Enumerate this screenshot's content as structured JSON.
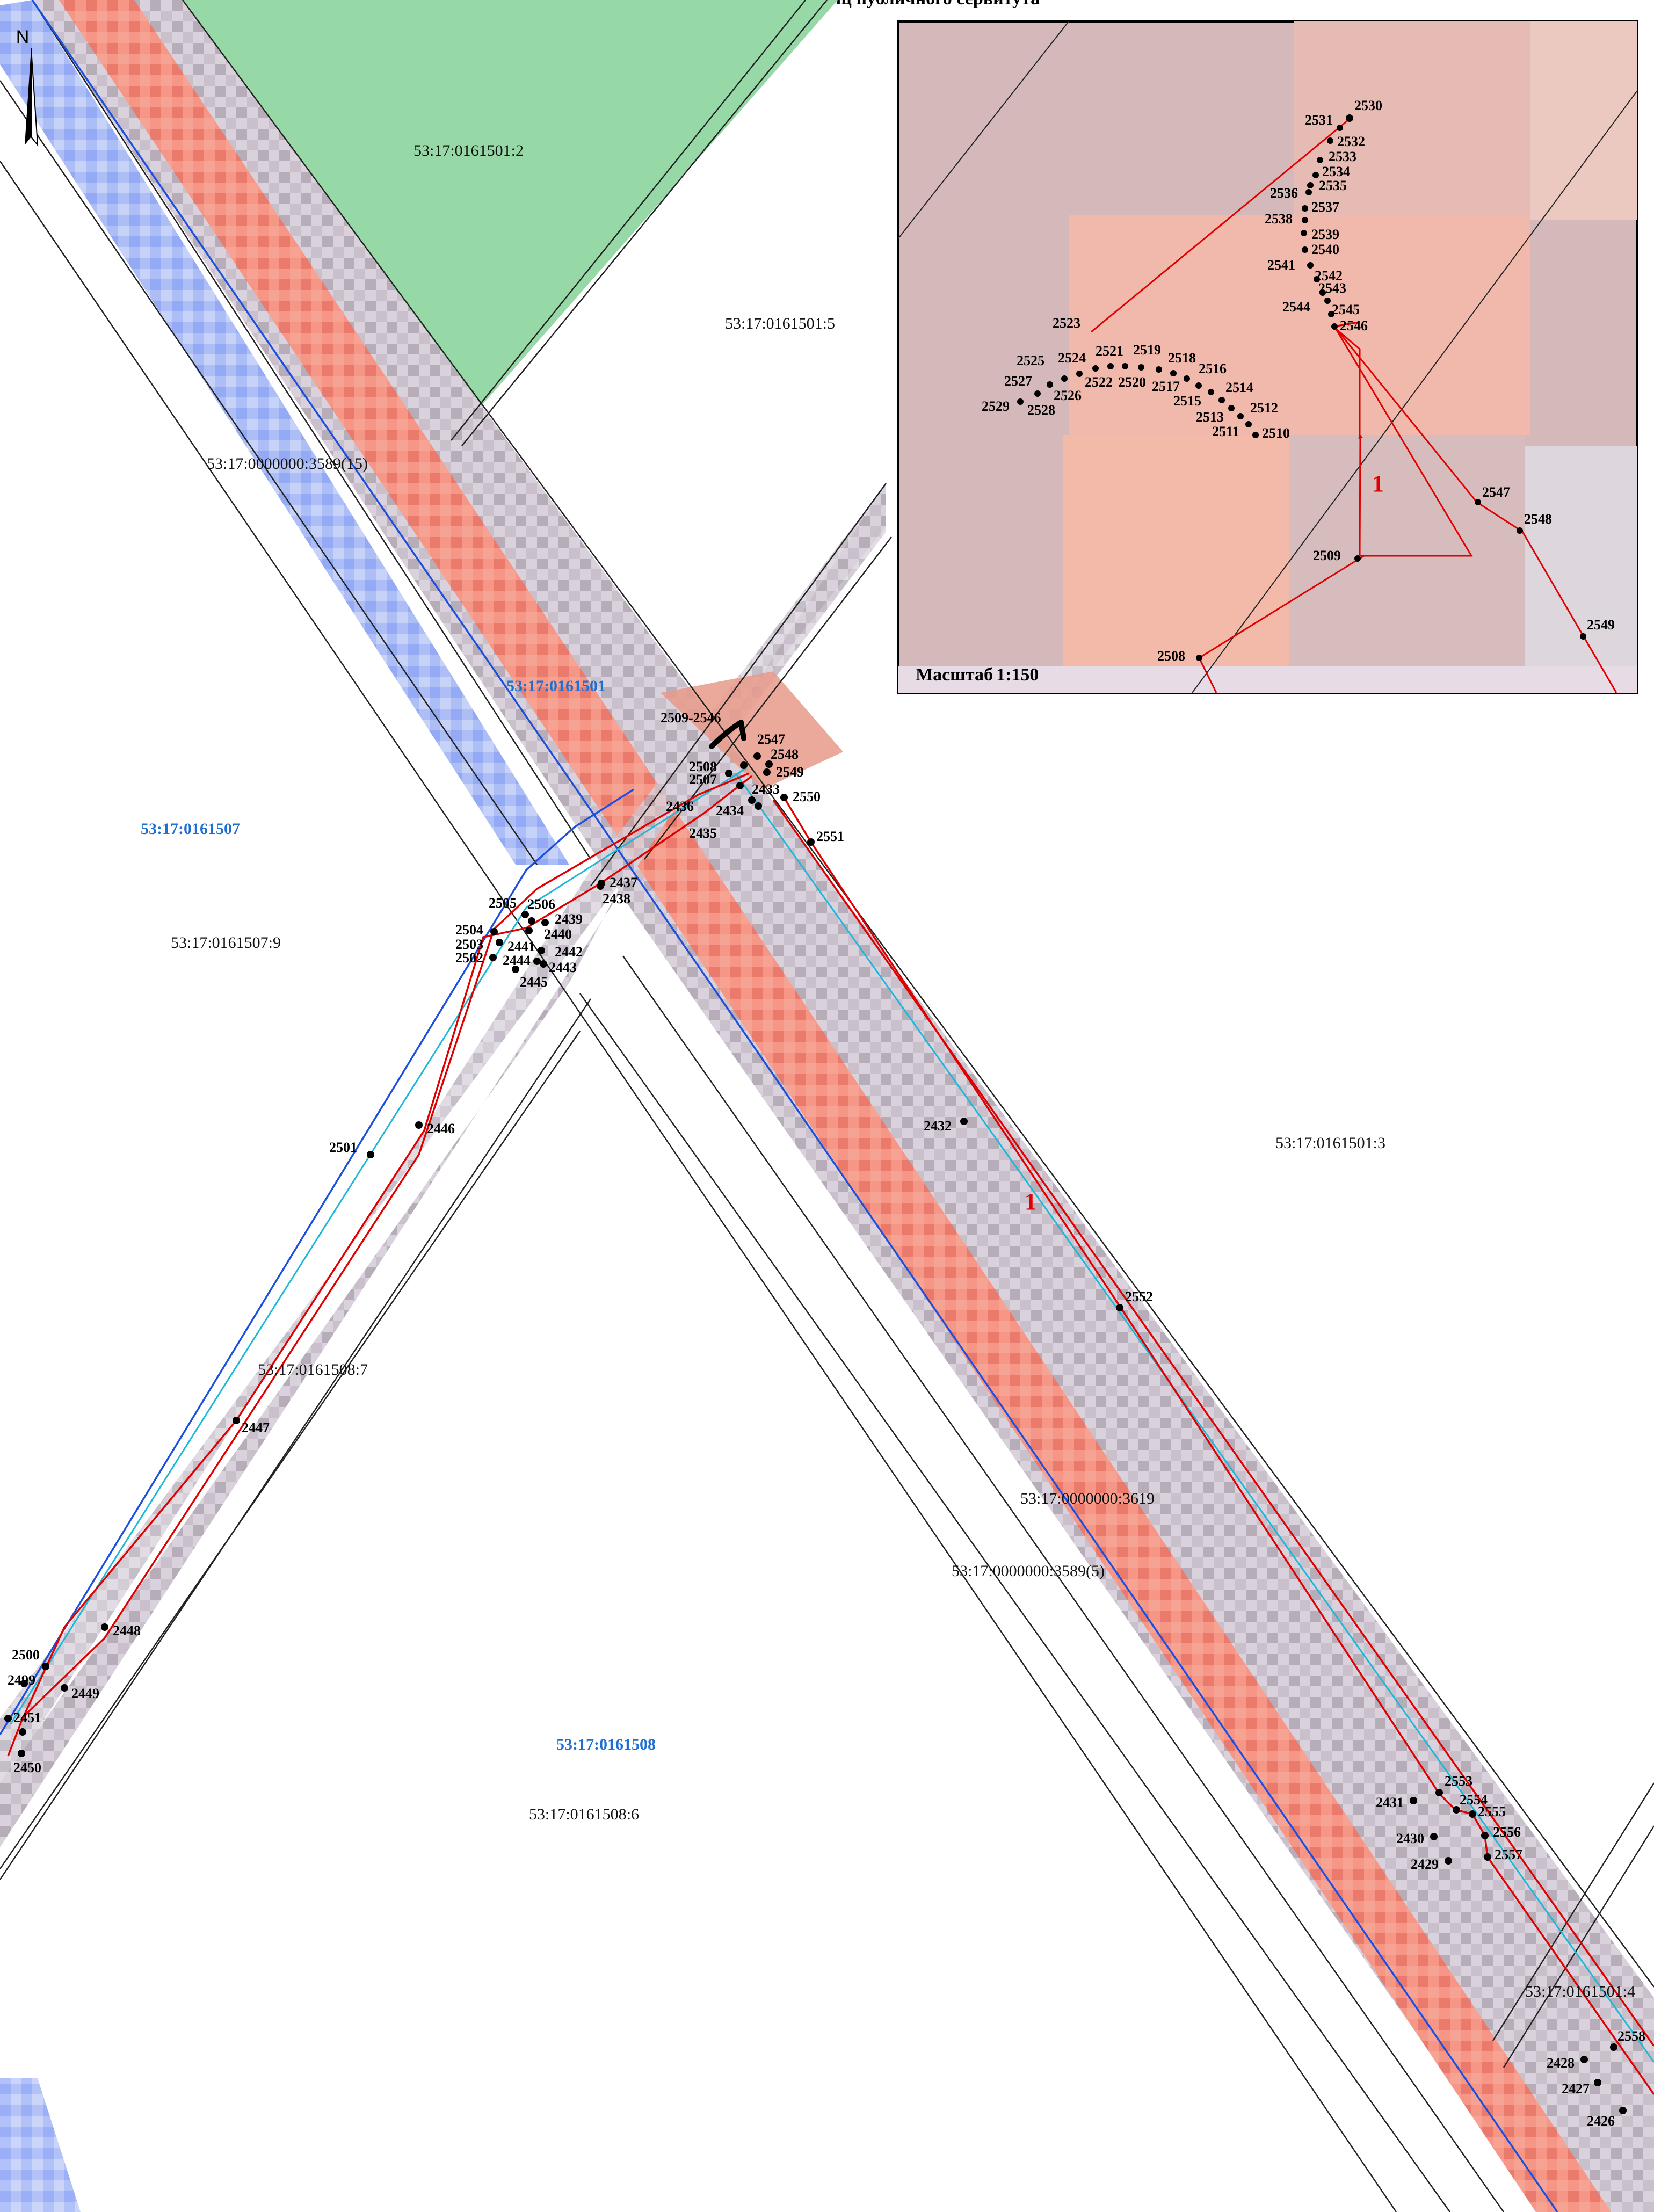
{
  "map": {
    "title": "Схема расположения границ публичного сервитута",
    "north_label": "N",
    "zone_label": "1",
    "parcels": [
      {
        "id": "p501-2",
        "text": "53:17:0161501:2"
      },
      {
        "id": "p501-5",
        "text": "53:17:0161501:5"
      },
      {
        "id": "p3589-15",
        "text": "53:17:0000000:3589(15)"
      },
      {
        "id": "p507-9",
        "text": "53:17:0161507:9"
      },
      {
        "id": "p508-7",
        "text": "53:17:0161508:7"
      },
      {
        "id": "p501-3",
        "text": "53:17:0161501:3"
      },
      {
        "id": "p3619",
        "text": "53:17:0000000:3619"
      },
      {
        "id": "p3589-5",
        "text": "53:17:0000000:3589(5)"
      },
      {
        "id": "p508-6",
        "text": "53:17:0161508:6"
      },
      {
        "id": "p501-4",
        "text": "53:17:0161501:4"
      }
    ],
    "blocks": [
      {
        "id": "b501",
        "text": "53:17:0161501"
      },
      {
        "id": "b507",
        "text": "53:17:0161507"
      },
      {
        "id": "b508",
        "text": "53:17:0161508"
      }
    ],
    "cluster_label": "2509-2546",
    "points": [
      "2547",
      "2548",
      "2549",
      "2508",
      "2507",
      "2433",
      "2550",
      "2436",
      "2434",
      "2435",
      "2551",
      "2437",
      "2438",
      "2505",
      "2506",
      "2504",
      "2439",
      "2440",
      "2503",
      "2441",
      "2442",
      "2502",
      "2444",
      "2443",
      "2445",
      "2446",
      "2501",
      "2432",
      "2552",
      "2447",
      "2448",
      "2500",
      "2499",
      "2449",
      "2451",
      "2450",
      "2553",
      "2554",
      "2555",
      "2431",
      "2556",
      "2430",
      "2557",
      "2429",
      "2558",
      "2428",
      "2427",
      "2426"
    ],
    "inset": {
      "scale_label": "Масштаб",
      "scale_value": "1:150",
      "zone_label": "1",
      "points": [
        "2530",
        "2531",
        "2532",
        "2533",
        "2534",
        "2535",
        "2536",
        "2537",
        "2538",
        "2539",
        "2540",
        "2541",
        "2542",
        "2543",
        "2544",
        "2545",
        "2546",
        "2523",
        "2525",
        "2524",
        "2521",
        "2519",
        "2518",
        "2516",
        "2527",
        "2522",
        "2520",
        "2517",
        "2514",
        "2526",
        "2515",
        "2512",
        "2529",
        "2528",
        "2513",
        "2511",
        "2510",
        "2547",
        "2548",
        "2509",
        "2549",
        "2508"
      ]
    }
  }
}
